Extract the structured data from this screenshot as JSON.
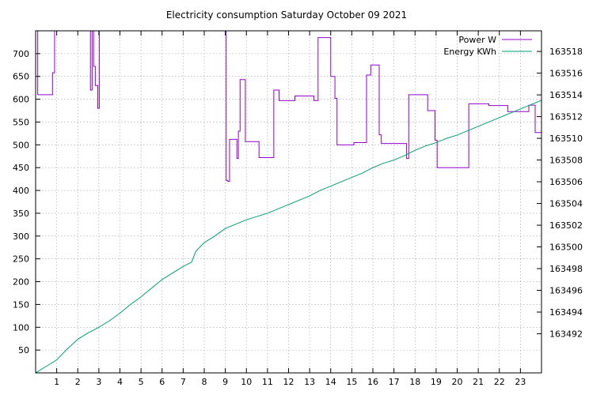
{
  "chart_data": {
    "type": "line",
    "title": "Electricity consumption Saturday October 09 2021",
    "xlim": [
      0,
      24
    ],
    "x_ticks": [
      1,
      2,
      3,
      4,
      5,
      6,
      7,
      8,
      9,
      10,
      11,
      12,
      13,
      14,
      15,
      16,
      17,
      18,
      19,
      20,
      21,
      22,
      23
    ],
    "y_left_lim": [
      0,
      750
    ],
    "y_left_ticks": [
      50,
      100,
      150,
      200,
      250,
      300,
      350,
      400,
      450,
      500,
      550,
      600,
      650,
      700
    ],
    "y_right_lim": [
      163488.4,
      163519.9
    ],
    "y_right_ticks": [
      163492,
      163494,
      163496,
      163498,
      163500,
      163502,
      163504,
      163506,
      163508,
      163510,
      163512,
      163514,
      163516,
      163518
    ],
    "grid": true,
    "legend_position": "top-right",
    "series": [
      {
        "name": "Power W",
        "axis": "left",
        "color": "#9400d3",
        "step": true,
        "x": [
          0.0,
          0.1,
          0.75,
          0.8,
          0.9,
          2.4,
          2.6,
          2.68,
          2.75,
          2.83,
          2.95,
          3.02,
          3.05,
          9.0,
          9.04,
          9.12,
          9.2,
          9.55,
          9.62,
          9.7,
          9.95,
          10.6,
          11.3,
          11.55,
          12.3,
          13.2,
          13.4,
          14.0,
          14.2,
          14.3,
          15.1,
          15.7,
          15.9,
          16.3,
          16.4,
          17.6,
          17.7,
          18.6,
          18.95,
          19.05,
          20.45,
          20.55,
          21.5,
          22.4,
          23.4,
          23.7,
          24.0
        ],
        "values": [
          750,
          610,
          610,
          658,
          750,
          750,
          620,
          750,
          672,
          630,
          580,
          750,
          750,
          750,
          422,
          420,
          512,
          470,
          530,
          643,
          507,
          472,
          620,
          597,
          607,
          597,
          735,
          650,
          602,
          500,
          505,
          653,
          675,
          522,
          503,
          470,
          610,
          575,
          510,
          450,
          450,
          590,
          586,
          573,
          587,
          527,
          665
        ]
      },
      {
        "name": "Energy KWh",
        "axis": "right",
        "color": "#009e73",
        "step": false,
        "x": [
          0.0,
          0.5,
          1.0,
          1.5,
          2.0,
          2.5,
          3.0,
          3.5,
          4.0,
          4.5,
          5.0,
          5.5,
          6.0,
          6.5,
          7.0,
          7.4,
          7.6,
          8.0,
          8.5,
          9.0,
          9.5,
          10.0,
          10.5,
          11.0,
          11.5,
          12.0,
          12.5,
          13.0,
          13.5,
          14.0,
          14.5,
          15.0,
          15.5,
          16.0,
          16.5,
          17.0,
          17.5,
          18.0,
          18.5,
          19.0,
          19.5,
          20.0,
          20.5,
          21.0,
          21.5,
          22.0,
          22.5,
          23.0,
          23.5,
          24.0
        ],
        "values": [
          163488.4,
          163489.0,
          163489.6,
          163490.6,
          163491.5,
          163492.1,
          163492.6,
          163493.2,
          163493.9,
          163494.7,
          163495.4,
          163496.2,
          163497.0,
          163497.6,
          163498.2,
          163498.6,
          163499.6,
          163500.4,
          163501.0,
          163501.7,
          163502.1,
          163502.5,
          163502.8,
          163503.1,
          163503.5,
          163503.9,
          163504.3,
          163504.7,
          163505.2,
          163505.6,
          163506.0,
          163506.4,
          163506.8,
          163507.3,
          163507.7,
          163508.0,
          163508.4,
          163508.9,
          163509.3,
          163509.6,
          163510.0,
          163510.3,
          163510.7,
          163511.1,
          163511.5,
          163511.9,
          163512.3,
          163512.7,
          163513.1,
          163513.5
        ]
      }
    ]
  }
}
